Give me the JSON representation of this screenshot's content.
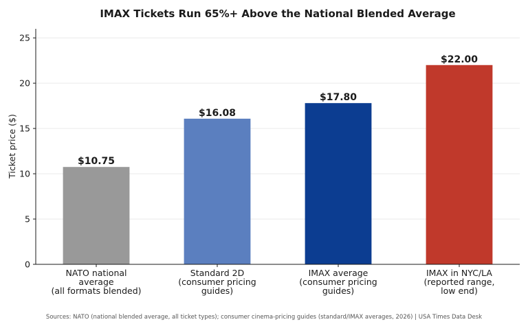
{
  "chart_data": {
    "type": "bar",
    "title": "IMAX Tickets Run 65%+ Above the National Blended Average",
    "xlabel": "",
    "ylabel": "Ticket price ($)",
    "ylim": [
      0,
      26
    ],
    "yticks": [
      0,
      5,
      10,
      15,
      20,
      25
    ],
    "grid": "horizontal",
    "legend": "none",
    "categories": [
      [
        "NATO national",
        "average",
        "(all formats blended)"
      ],
      [
        "Standard 2D",
        "(consumer pricing",
        "guides)"
      ],
      [
        "IMAX average",
        "(consumer pricing",
        "guides)"
      ],
      [
        "IMAX in NYC/LA",
        "(reported range,",
        "low end)"
      ]
    ],
    "values": [
      10.75,
      16.08,
      17.8,
      22.0
    ],
    "value_labels": [
      "$10.75",
      "$16.08",
      "$17.80",
      "$22.00"
    ],
    "bar_colors": [
      "#999999",
      "#5b7fbf",
      "#0c3d91",
      "#c0392b"
    ],
    "source": "Sources: NATO (national blended average, all ticket types); consumer cinema-pricing guides (standard/IMAX averages, 2026) | USA Times Data Desk"
  }
}
